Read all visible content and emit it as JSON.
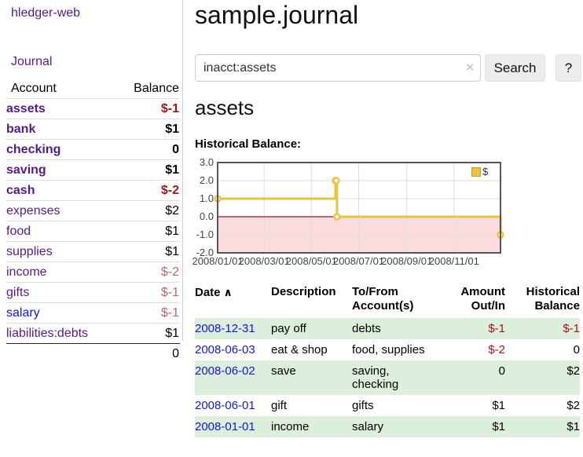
{
  "app": {
    "brand": "hledger-web",
    "nav_journal": "Journal"
  },
  "sidebar": {
    "table_headers": {
      "account": "Account",
      "balance": "Balance"
    },
    "accounts": [
      {
        "name": "assets",
        "indent": 0,
        "bold": true,
        "blue": false,
        "balance": "$-1",
        "tone": "neg"
      },
      {
        "name": "bank",
        "indent": 1,
        "bold": true,
        "blue": false,
        "balance": "$1",
        "tone": ""
      },
      {
        "name": "checking",
        "indent": 2,
        "bold": true,
        "blue": false,
        "balance": "0",
        "tone": ""
      },
      {
        "name": "saving",
        "indent": 2,
        "bold": true,
        "blue": false,
        "balance": "$1",
        "tone": ""
      },
      {
        "name": "cash",
        "indent": 1,
        "bold": true,
        "blue": false,
        "balance": "$-2",
        "tone": "neg"
      },
      {
        "name": "expenses",
        "indent": 0,
        "bold": false,
        "blue": false,
        "balance": "$2",
        "tone": ""
      },
      {
        "name": "food",
        "indent": 1,
        "bold": false,
        "blue": false,
        "balance": "$1",
        "tone": ""
      },
      {
        "name": "supplies",
        "indent": 1,
        "bold": false,
        "blue": false,
        "balance": "$1",
        "tone": ""
      },
      {
        "name": "income",
        "indent": 0,
        "bold": false,
        "blue": false,
        "balance": "$-2",
        "tone": "softneg"
      },
      {
        "name": "gifts",
        "indent": 1,
        "bold": false,
        "blue": false,
        "balance": "$-1",
        "tone": "softneg"
      },
      {
        "name": "salary",
        "indent": 1,
        "bold": false,
        "blue": true,
        "balance": "$-1",
        "tone": "softneg"
      },
      {
        "name": "liabilities:debts",
        "indent": 0,
        "bold": false,
        "blue": false,
        "balance": "$1",
        "tone": ""
      }
    ],
    "total": "0"
  },
  "main": {
    "title": "sample.journal",
    "search": {
      "value": "inacct:assets",
      "clear_icon": "×",
      "button": "Search",
      "help": "?"
    },
    "account_heading": "assets",
    "chart_label": "Historical Balance:"
  },
  "chart_data": {
    "type": "line",
    "mode": "steps",
    "title": "Historical Balance",
    "series": [
      {
        "name": "$",
        "color": "#EDC240",
        "points": [
          {
            "date": "2008-01-01",
            "value": 1
          },
          {
            "date": "2008-06-01",
            "value": 2
          },
          {
            "date": "2008-06-02",
            "value": 2
          },
          {
            "date": "2008-06-03",
            "value": 0
          },
          {
            "date": "2008-12-31",
            "value": -1
          }
        ]
      }
    ],
    "x_range": [
      "2008-01-01",
      "2008-12-31"
    ],
    "ylim": [
      -2,
      3
    ],
    "yticks": [
      3.0,
      2.0,
      1.0,
      0.0,
      -1.0,
      -2.0
    ],
    "xticks": [
      {
        "date": "2008-01-01",
        "label": "2008/01/01"
      },
      {
        "date": "2008-03-01",
        "label": "2008/03/01"
      },
      {
        "date": "2008-05-01",
        "label": "2008/05/01"
      },
      {
        "date": "2008-07-01",
        "label": "2008/07/01"
      },
      {
        "date": "2008-09-01",
        "label": "2008/09/01"
      },
      {
        "date": "2008-11-01",
        "label": "2008/11/01"
      }
    ],
    "legend": {
      "position": "top-right"
    },
    "grid": true,
    "colors": {
      "negative_region": "#fbdcdc",
      "zero_line": "#8b1a1a",
      "gridline": "#ddd",
      "plot_border": "#555"
    }
  },
  "table": {
    "headers": [
      {
        "label": "Date",
        "sort_icon": "∧",
        "align": "left"
      },
      {
        "label": "Description",
        "align": "left"
      },
      {
        "label": "To/From Account(s)",
        "align": "left"
      },
      {
        "label": "Amount Out/In",
        "align": "right"
      },
      {
        "label": "Historical Balance",
        "align": "right"
      }
    ],
    "rows": [
      {
        "date": "2008-12-31",
        "description": "pay off",
        "accounts": "debts",
        "amount": "$-1",
        "amount_tone": "neg",
        "balance": "$-1",
        "balance_tone": "neg"
      },
      {
        "date": "2008-06-03",
        "description": "eat & shop",
        "accounts": "food, supplies",
        "amount": "$-2",
        "amount_tone": "neg",
        "balance": "0",
        "balance_tone": ""
      },
      {
        "date": "2008-06-02",
        "description": "save",
        "accounts": "saving, checking",
        "amount": "0",
        "amount_tone": "",
        "balance": "$2",
        "balance_tone": ""
      },
      {
        "date": "2008-06-01",
        "description": "gift",
        "accounts": "gifts",
        "amount": "$1",
        "amount_tone": "",
        "balance": "$2",
        "balance_tone": ""
      },
      {
        "date": "2008-01-01",
        "description": "income",
        "accounts": "salary",
        "amount": "$1",
        "amount_tone": "",
        "balance": "$1",
        "balance_tone": ""
      }
    ]
  }
}
